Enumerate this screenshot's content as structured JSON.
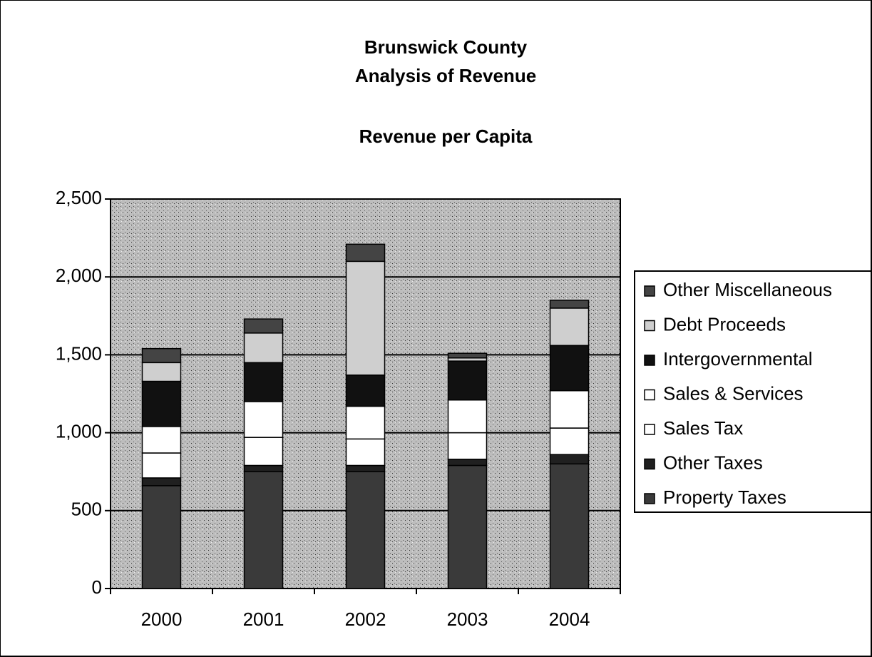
{
  "chart_data": {
    "type": "stacked_bar",
    "title": [
      "Brunswick County",
      "Analysis of Revenue"
    ],
    "subtitle": "Revenue per Capita",
    "categories": [
      "2000",
      "2001",
      "2002",
      "2003",
      "2004"
    ],
    "series": [
      {
        "name": "Property Taxes",
        "color": "#3a3a3a",
        "values": [
          660,
          750,
          750,
          790,
          800
        ]
      },
      {
        "name": "Other Taxes",
        "color": "#202020",
        "values": [
          50,
          40,
          40,
          40,
          60
        ]
      },
      {
        "name": "Sales Tax",
        "color": "#ffffff",
        "values": [
          160,
          180,
          170,
          170,
          170
        ]
      },
      {
        "name": "Sales & Services",
        "color": "#ffffff",
        "values": [
          170,
          230,
          210,
          210,
          240
        ]
      },
      {
        "name": "Intergovernmental",
        "color": "#111111",
        "values": [
          290,
          250,
          200,
          250,
          290
        ]
      },
      {
        "name": "Debt Proceeds",
        "color": "#cfcfcf",
        "values": [
          120,
          190,
          730,
          20,
          240
        ]
      },
      {
        "name": "Other Miscellaneous",
        "color": "#444444",
        "values": [
          90,
          90,
          110,
          30,
          50
        ]
      }
    ],
    "ylim": [
      0,
      2500
    ],
    "yticks": [
      0,
      500,
      {
        "value": 1000,
        "label": "1,000"
      },
      {
        "value": 1500,
        "label": "1,500"
      },
      {
        "value": 2000,
        "label": "2,000"
      },
      {
        "value": 2500,
        "label": "2,500"
      }
    ],
    "grid": true,
    "legend": "right"
  }
}
